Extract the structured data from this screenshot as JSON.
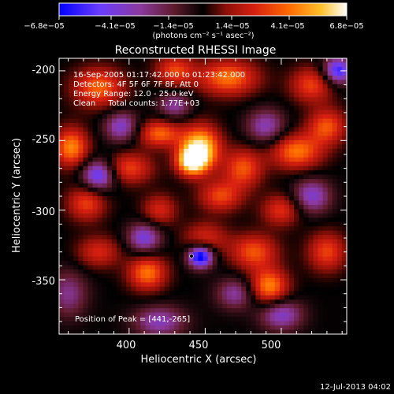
{
  "chart_data": {
    "type": "heatmap",
    "title": "Reconstructed RHESSI Image",
    "xlabel": "Heliocentric X (arcsec)",
    "ylabel": "Heliocentric Y (arcsec)",
    "xlim": [
      354,
      543
    ],
    "ylim": [
      -389,
      -191
    ],
    "x_ticks": [
      400,
      450,
      500
    ],
    "y_ticks": [
      -200,
      -250,
      -300,
      -350
    ],
    "colorbar": {
      "range": [
        -6.8e-05,
        6.8e-05
      ],
      "tick_labels": [
        "−6.8e−05",
        "−4.1e−05",
        "−1.4e−05",
        "1.4e−05",
        "4.1e−05",
        "6.8e−05"
      ],
      "unit_label": "(photons cm⁻² s⁻¹ asec⁻²)",
      "colormap": [
        "#0000ff",
        "#6a3cff",
        "#8c3aa0",
        "#5e1a2a",
        "#000000",
        "#8c1008",
        "#d82010",
        "#ff6a00",
        "#ffc02a",
        "#ffffff"
      ]
    },
    "annotations": [
      "16-Sep-2005 01:17:42.000 to 01:23:42.000",
      "Detectors: 4F 5F 6F 7F 8F, Att 0",
      "Energy Range: 12.0 - 25.0 keV",
      "Clean     Total counts: 1.77E+03"
    ],
    "peak_label": "Position of Peak = [441,-265]",
    "peak_position": [
      441,
      -265
    ],
    "features": [
      {
        "x": 447,
        "y": -255,
        "amp": 1.0,
        "sx": 9,
        "sy": 11
      },
      {
        "x": 441,
        "y": -265,
        "amp": 0.95,
        "sx": 7,
        "sy": 7
      },
      {
        "x": 420,
        "y": -245,
        "amp": 0.65,
        "sx": 10,
        "sy": 7
      },
      {
        "x": 400,
        "y": -270,
        "amp": 0.55,
        "sx": 11,
        "sy": 8
      },
      {
        "x": 475,
        "y": -270,
        "amp": 0.6,
        "sx": 9,
        "sy": 10
      },
      {
        "x": 460,
        "y": -290,
        "amp": 0.55,
        "sx": 10,
        "sy": 8
      },
      {
        "x": 510,
        "y": -258,
        "amp": 0.7,
        "sx": 12,
        "sy": 9
      },
      {
        "x": 530,
        "y": -240,
        "amp": 0.6,
        "sx": 9,
        "sy": 9
      },
      {
        "x": 520,
        "y": -210,
        "amp": 0.55,
        "sx": 10,
        "sy": 9
      },
      {
        "x": 465,
        "y": -205,
        "amp": 0.7,
        "sx": 14,
        "sy": 9
      },
      {
        "x": 430,
        "y": -200,
        "amp": 0.55,
        "sx": 9,
        "sy": 8
      },
      {
        "x": 380,
        "y": -212,
        "amp": 0.65,
        "sx": 12,
        "sy": 10
      },
      {
        "x": 362,
        "y": -255,
        "amp": 0.75,
        "sx": 8,
        "sy": 10
      },
      {
        "x": 372,
        "y": -295,
        "amp": 0.55,
        "sx": 9,
        "sy": 9
      },
      {
        "x": 380,
        "y": -330,
        "amp": 0.45,
        "sx": 10,
        "sy": 8
      },
      {
        "x": 412,
        "y": -345,
        "amp": 0.7,
        "sx": 9,
        "sy": 9
      },
      {
        "x": 450,
        "y": -320,
        "amp": 0.45,
        "sx": 10,
        "sy": 8
      },
      {
        "x": 482,
        "y": -330,
        "amp": 0.6,
        "sx": 11,
        "sy": 9
      },
      {
        "x": 492,
        "y": -355,
        "amp": 0.75,
        "sx": 9,
        "sy": 9
      },
      {
        "x": 530,
        "y": -330,
        "amp": 0.55,
        "sx": 9,
        "sy": 10
      },
      {
        "x": 500,
        "y": -300,
        "amp": 0.5,
        "sx": 9,
        "sy": 8
      },
      {
        "x": 420,
        "y": -300,
        "amp": 0.45,
        "sx": 8,
        "sy": 8
      },
      {
        "x": 395,
        "y": -240,
        "amp": -0.55,
        "sx": 8,
        "sy": 8
      },
      {
        "x": 430,
        "y": -225,
        "amp": -0.45,
        "sx": 8,
        "sy": 7
      },
      {
        "x": 490,
        "y": -240,
        "amp": -0.5,
        "sx": 9,
        "sy": 9
      },
      {
        "x": 380,
        "y": -275,
        "amp": -0.75,
        "sx": 8,
        "sy": 8
      },
      {
        "x": 447,
        "y": -333,
        "amp": -1.0,
        "sx": 6,
        "sy": 6
      },
      {
        "x": 410,
        "y": -320,
        "amp": -0.6,
        "sx": 8,
        "sy": 8
      },
      {
        "x": 520,
        "y": -290,
        "amp": -0.55,
        "sx": 9,
        "sy": 9
      },
      {
        "x": 537,
        "y": -200,
        "amp": -0.8,
        "sx": 7,
        "sy": 7
      },
      {
        "x": 500,
        "y": -375,
        "amp": -0.55,
        "sx": 10,
        "sy": 8
      },
      {
        "x": 420,
        "y": -380,
        "amp": -0.5,
        "sx": 12,
        "sy": 8
      },
      {
        "x": 470,
        "y": -360,
        "amp": -0.45,
        "sx": 9,
        "sy": 8
      },
      {
        "x": 360,
        "y": -360,
        "amp": -0.4,
        "sx": 9,
        "sy": 12
      }
    ]
  },
  "footer": {
    "date": "12-Jul-2013 04:02"
  }
}
